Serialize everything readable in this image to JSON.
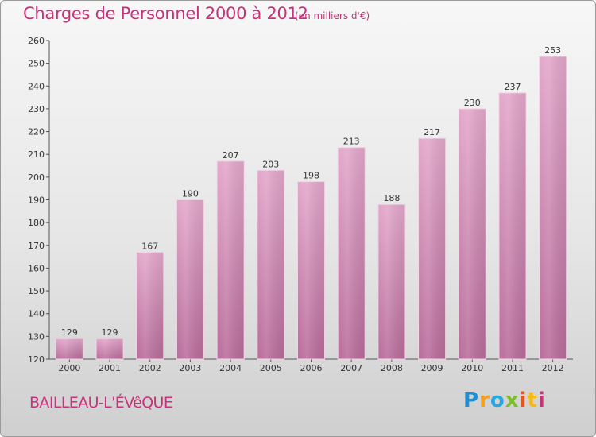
{
  "header": {
    "title": "Charges de Personnel 2000 à 2012",
    "subtitle": "(en milliers d'€)"
  },
  "footer": {
    "commune": "BAILLEAU-L'ÉVêQUE",
    "logo": {
      "p": "P",
      "r": "r",
      "o": "o",
      "x": "x",
      "i1": "i",
      "t": "t",
      "i2": "i"
    }
  },
  "colors": {
    "bar_top": "#e3a7cb",
    "bar_bottom": "#b86c9a",
    "title": "#c8327a"
  },
  "chart_data": {
    "type": "bar",
    "title": "Charges de Personnel 2000 à 2012",
    "subtitle": "(en milliers d'€)",
    "categories": [
      "2000",
      "2001",
      "2002",
      "2003",
      "2004",
      "2005",
      "2006",
      "2007",
      "2008",
      "2009",
      "2010",
      "2011",
      "2012"
    ],
    "values": [
      129,
      129,
      167,
      190,
      207,
      203,
      198,
      213,
      188,
      217,
      230,
      237,
      253
    ],
    "ylim": [
      120,
      260
    ],
    "yticks": [
      120,
      130,
      140,
      150,
      160,
      170,
      180,
      190,
      200,
      210,
      220,
      230,
      240,
      250,
      260
    ],
    "grid": false
  }
}
